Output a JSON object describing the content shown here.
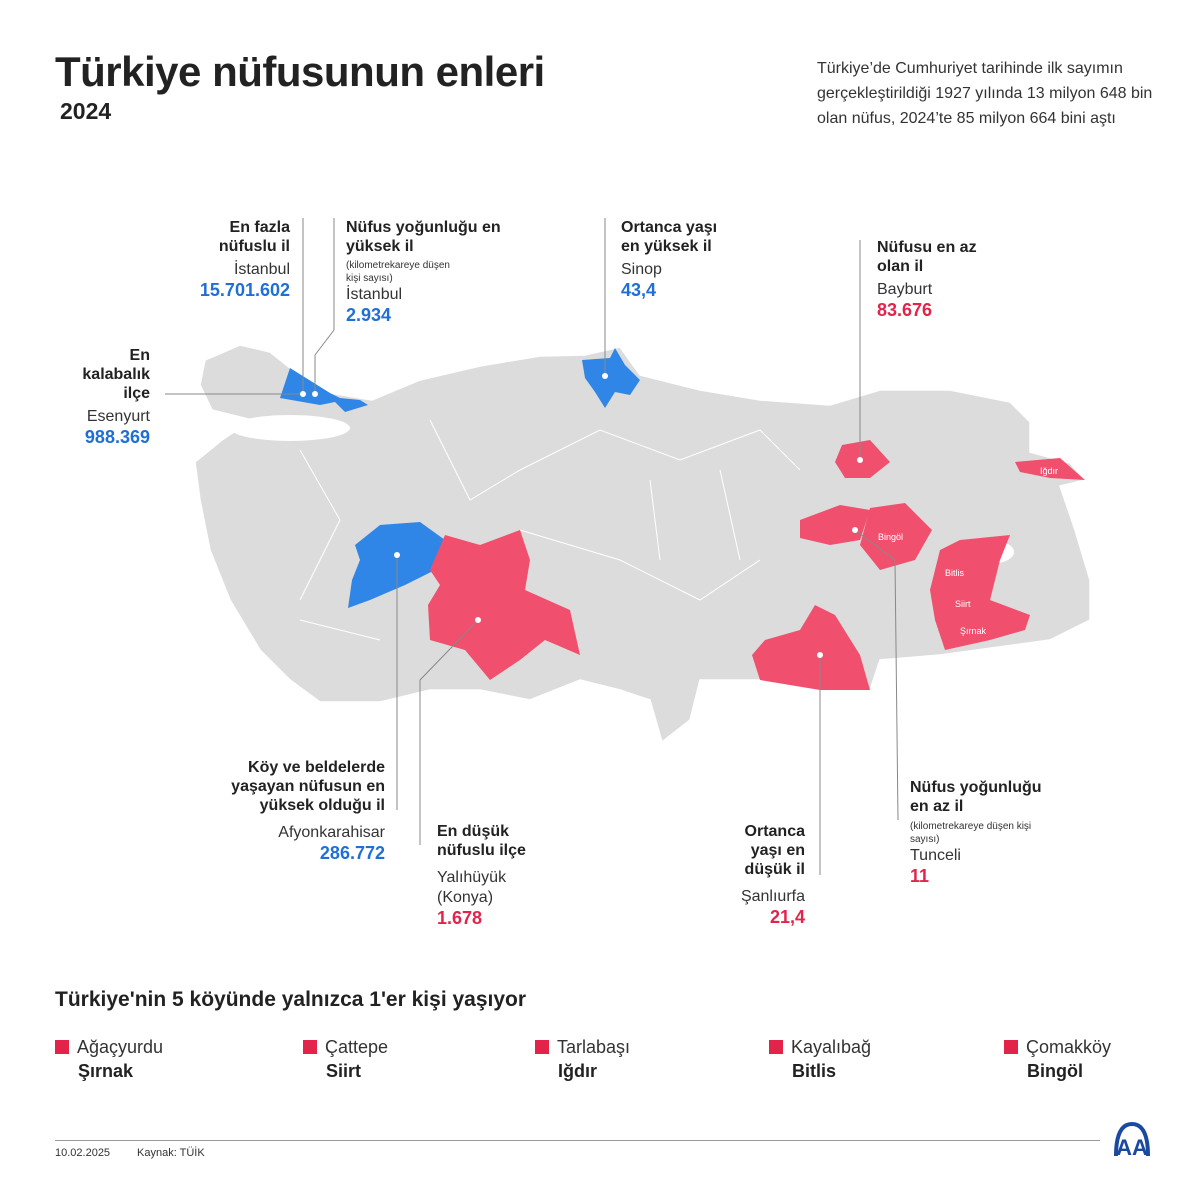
{
  "header": {
    "title": "Türkiye nüfusunun enleri",
    "year": "2024",
    "intro": "Türkiye’de Cumhuriyet tarihinde ilk sayımın gerçekleştirildiği 1927 yılında 13 milyon 648 bin olan nüfus, 2024’te 85 milyon 664 bini aştı"
  },
  "colors": {
    "highest": "#1f6fd6",
    "lowest": "#e2244a",
    "map": "#dcdcdc"
  },
  "callouts": {
    "most_populous": {
      "label": "En fazla nüfuslu il",
      "place": "İstanbul",
      "value": "15.701.602"
    },
    "density_high": {
      "label": "Nüfus yoğunluğu en yüksek il",
      "note": "(kilometrekareye düşen kişi sayısı)",
      "place": "İstanbul",
      "value": "2.934"
    },
    "median_high": {
      "label": "Ortanca yaşı en yüksek il",
      "place": "Sinop",
      "value": "43,4"
    },
    "least_populous": {
      "label": "Nüfusu en az olan il",
      "place": "Bayburt",
      "value": "83.676"
    },
    "crowded_district": {
      "label": "En kalabalık ilçe",
      "place": "Esenyurt",
      "value": "988.369"
    },
    "rural": {
      "label": "Köy ve beldelerde yaşayan nüfusun en yüksek olduğu il",
      "place": "Afyonkarahisar",
      "value": "286.772"
    },
    "smallest_district": {
      "label": "En düşük nüfuslu ilçe",
      "place": "Yalıhüyük (Konya)",
      "value": "1.678"
    },
    "median_low": {
      "label": "Ortanca yaşı en düşük il",
      "place": "Şanlıurfa",
      "value": "21,4"
    },
    "density_low": {
      "label": "Nüfus yoğunluğu en az il",
      "note": "(kilometrekareye düşen kişi sayısı)",
      "place": "Tunceli",
      "value": "11"
    }
  },
  "map_labels": {
    "igdir": "Iğdır",
    "bingol": "Bingöl",
    "bitlis": "Bitlis",
    "siirt": "Siirt",
    "sirnak": "Şırnak"
  },
  "villages": {
    "title": "Türkiye'nin 5 köyünde yalnızca 1'er kişi yaşıyor",
    "items": [
      {
        "village": "Ağaçyurdu",
        "province": "Şırnak"
      },
      {
        "village": "Çattepe",
        "province": "Siirt"
      },
      {
        "village": "Tarlabaşı",
        "province": "Iğdır"
      },
      {
        "village": "Kayalıbağ",
        "province": "Bitlis"
      },
      {
        "village": "Çomakköy",
        "province": "Bingöl"
      }
    ]
  },
  "footer": {
    "date": "10.02.2025",
    "source": "Kaynak: TÜİK",
    "logo": "AA"
  }
}
